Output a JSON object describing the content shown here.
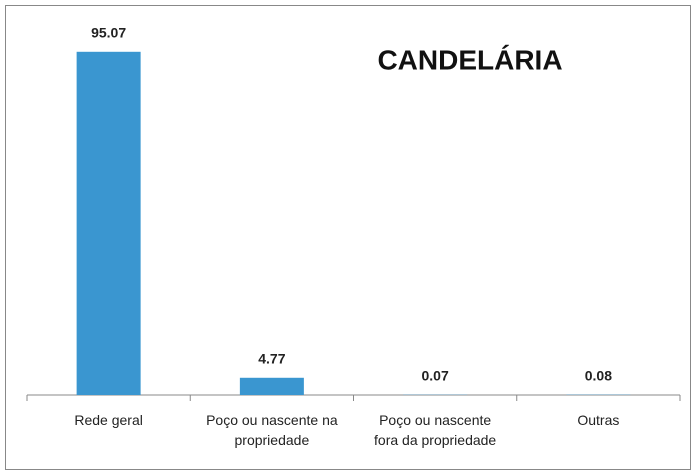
{
  "chart_data": {
    "type": "bar",
    "title": "CANDELÁRIA",
    "categories": [
      "Rede geral",
      "Poço ou nascente na propriedade",
      "Poço ou nascente fora da propriedade",
      "Outras"
    ],
    "values": [
      95.07,
      4.77,
      0.07,
      0.08
    ],
    "color": "#3a96d0",
    "ylim": [
      0,
      100
    ]
  }
}
